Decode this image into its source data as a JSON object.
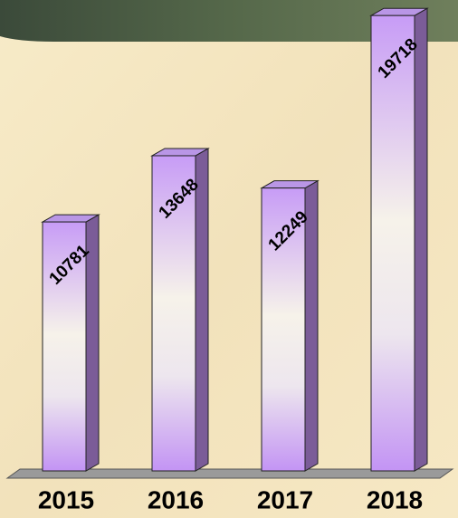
{
  "chart_data": {
    "type": "bar3d",
    "categories": [
      "2015",
      "2016",
      "2017",
      "2018"
    ],
    "values": [
      10781,
      13648,
      12249,
      19718
    ],
    "color": "#cc99ff",
    "ylim": [
      0,
      20000
    ]
  }
}
